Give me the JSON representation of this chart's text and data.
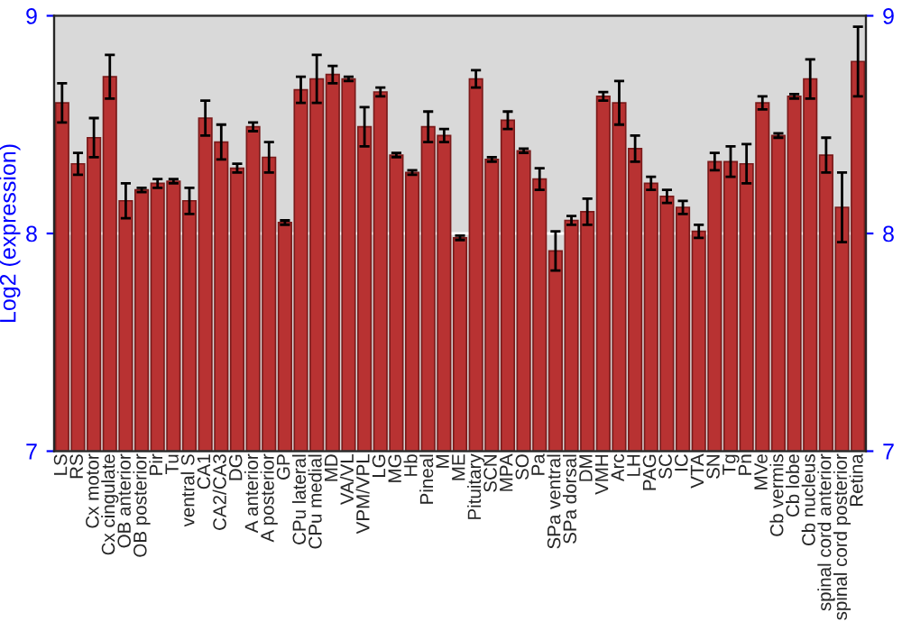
{
  "chart_data": {
    "type": "bar",
    "ylabel": "Log2 (expression)",
    "categories": [
      "LS",
      "RS",
      "Cx motor",
      "Cx cingulate",
      "OB anterior",
      "OB posterior",
      "Pir",
      "Tu",
      "ventral S",
      "CA1",
      "CA2/CA3",
      "DG",
      "A anterior",
      "A posterior",
      "GP",
      "CPu lateral",
      "CPu medial",
      "MD",
      "VA/VL",
      "VPM/VPL",
      "LG",
      "MG",
      "Hb",
      "Pineal",
      "M",
      "ME",
      "Pituitary",
      "SCN",
      "MPA",
      "SO",
      "Pa",
      "SPa ventral",
      "SPa dorsal",
      "DM",
      "VMH",
      "Arc",
      "LH",
      "PAG",
      "SC",
      "IC",
      "VTA",
      "SN",
      "Tg",
      "Pn",
      "MVe",
      "Cb vermis",
      "Cb lobe",
      "Cb nucleus",
      "spinal cord anterior",
      "spinal cord posterior",
      "Retina"
    ],
    "values": [
      8.6,
      8.32,
      8.44,
      8.72,
      8.15,
      8.2,
      8.23,
      8.24,
      8.15,
      8.53,
      8.42,
      8.3,
      8.49,
      8.35,
      8.05,
      8.66,
      8.71,
      8.73,
      8.71,
      8.49,
      8.65,
      8.36,
      8.28,
      8.49,
      8.45,
      7.98,
      8.71,
      8.34,
      8.52,
      8.38,
      8.25,
      7.92,
      8.06,
      8.1,
      8.63,
      8.6,
      8.39,
      8.23,
      8.17,
      8.12,
      8.01,
      8.33,
      8.33,
      8.32,
      8.6,
      8.45,
      8.63,
      8.71,
      8.36,
      8.12,
      8.79
    ],
    "errors": [
      0.09,
      0.05,
      0.09,
      0.1,
      0.08,
      0.01,
      0.02,
      0.01,
      0.06,
      0.08,
      0.08,
      0.02,
      0.02,
      0.07,
      0.01,
      0.06,
      0.11,
      0.04,
      0.01,
      0.09,
      0.02,
      0.01,
      0.01,
      0.07,
      0.03,
      0.01,
      0.04,
      0.01,
      0.04,
      0.01,
      0.05,
      0.09,
      0.02,
      0.06,
      0.02,
      0.1,
      0.06,
      0.03,
      0.03,
      0.03,
      0.03,
      0.04,
      0.07,
      0.09,
      0.03,
      0.01,
      0.01,
      0.09,
      0.08,
      0.16,
      0.16
    ],
    "color": "#b83232",
    "ylim": [
      7,
      9
    ],
    "yticks": [
      7,
      8,
      9
    ],
    "y2lim": [
      7,
      9
    ],
    "y2ticks": [
      7,
      8,
      9
    ],
    "grid": "y",
    "legend": false
  }
}
